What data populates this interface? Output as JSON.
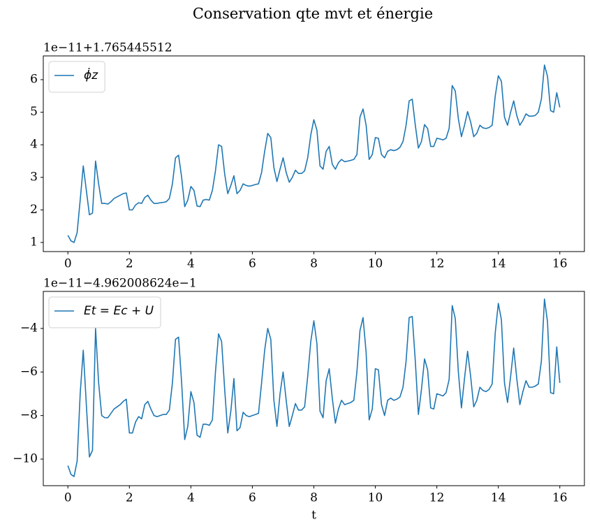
{
  "title": "Conservation qte mvt et énergie",
  "chart_data": [
    {
      "type": "line",
      "offset_text": "1e−11+1.765445512",
      "legend": "upper left",
      "grid": false,
      "x": [
        0,
        0.1,
        0.2,
        0.3,
        0.4,
        0.5,
        0.6,
        0.7,
        0.8,
        0.9,
        1.0,
        1.1,
        1.2,
        1.3,
        1.4,
        1.5,
        1.6,
        1.7,
        1.8,
        1.9,
        2.0,
        2.1,
        2.2,
        2.3,
        2.4,
        2.5,
        2.6,
        2.7,
        2.8,
        2.9,
        3.0,
        3.1,
        3.2,
        3.3,
        3.4,
        3.5,
        3.6,
        3.7,
        3.8,
        3.9,
        4.0,
        4.1,
        4.2,
        4.3,
        4.4,
        4.5,
        4.6,
        4.7,
        4.8,
        4.9,
        5.0,
        5.1,
        5.2,
        5.3,
        5.4,
        5.5,
        5.6,
        5.7,
        5.8,
        5.9,
        6.0,
        6.1,
        6.2,
        6.3,
        6.4,
        6.5,
        6.6,
        6.7,
        6.8,
        6.9,
        7.0,
        7.1,
        7.2,
        7.3,
        7.4,
        7.5,
        7.6,
        7.7,
        7.8,
        7.9,
        8.0,
        8.1,
        8.2,
        8.3,
        8.4,
        8.5,
        8.6,
        8.7,
        8.8,
        8.9,
        9.0,
        9.1,
        9.2,
        9.3,
        9.4,
        9.5,
        9.6,
        9.7,
        9.8,
        9.9,
        10.0,
        10.1,
        10.2,
        10.3,
        10.4,
        10.5,
        10.6,
        10.7,
        10.8,
        10.9,
        11.0,
        11.1,
        11.2,
        11.3,
        11.4,
        11.5,
        11.6,
        11.7,
        11.8,
        11.9,
        12.0,
        12.1,
        12.2,
        12.3,
        12.4,
        12.5,
        12.6,
        12.7,
        12.8,
        12.9,
        13.0,
        13.1,
        13.2,
        13.3,
        13.4,
        13.5,
        13.6,
        13.7,
        13.8,
        13.9,
        14.0,
        14.1,
        14.2,
        14.3,
        14.4,
        14.5,
        14.6,
        14.7,
        14.8,
        14.9,
        15.0,
        15.1,
        15.2,
        15.3,
        15.4,
        15.5,
        15.6,
        15.7,
        15.8,
        15.9,
        16.0
      ],
      "series": [
        {
          "name": "ϕ̇z",
          "color": "#1f77b4",
          "values": [
            1.22,
            1.05,
            1.0,
            1.3,
            2.3,
            3.35,
            2.6,
            1.85,
            1.9,
            3.5,
            2.8,
            2.2,
            2.2,
            2.18,
            2.25,
            2.35,
            2.4,
            2.45,
            2.5,
            2.52,
            2.0,
            2.0,
            2.15,
            2.22,
            2.2,
            2.38,
            2.45,
            2.3,
            2.2,
            2.2,
            2.22,
            2.23,
            2.25,
            2.35,
            2.8,
            3.6,
            3.68,
            3.0,
            2.1,
            2.3,
            2.72,
            2.6,
            2.12,
            2.1,
            2.3,
            2.32,
            2.3,
            2.6,
            3.2,
            4.0,
            3.95,
            3.1,
            2.5,
            2.75,
            3.05,
            2.5,
            2.6,
            2.8,
            2.75,
            2.73,
            2.75,
            2.78,
            2.8,
            3.15,
            3.8,
            4.35,
            4.22,
            3.3,
            2.87,
            3.25,
            3.6,
            3.15,
            2.85,
            3.0,
            3.22,
            3.12,
            3.12,
            3.2,
            3.6,
            4.3,
            4.77,
            4.45,
            3.35,
            3.25,
            3.8,
            3.95,
            3.4,
            3.25,
            3.45,
            3.55,
            3.48,
            3.5,
            3.52,
            3.55,
            3.7,
            4.85,
            5.1,
            4.6,
            3.55,
            3.7,
            4.22,
            4.2,
            3.7,
            3.6,
            3.8,
            3.85,
            3.82,
            3.85,
            3.92,
            4.1,
            4.6,
            5.35,
            5.4,
            4.6,
            3.9,
            4.1,
            4.62,
            4.5,
            3.95,
            3.95,
            4.2,
            4.18,
            4.15,
            4.2,
            4.5,
            5.82,
            5.65,
            4.8,
            4.25,
            4.6,
            5.02,
            4.7,
            4.25,
            4.35,
            4.6,
            4.52,
            4.5,
            4.53,
            4.6,
            5.5,
            6.12,
            5.95,
            4.85,
            4.6,
            5.0,
            5.35,
            4.9,
            4.6,
            4.75,
            4.95,
            4.88,
            4.88,
            4.9,
            5.0,
            5.4,
            6.45,
            6.1,
            5.05,
            5.0,
            5.6,
            5.15
          ]
        }
      ],
      "xlim": [
        -0.8,
        16.8
      ],
      "xticks": [
        0,
        2,
        4,
        6,
        8,
        10,
        12,
        14,
        16
      ],
      "ylim": [
        0.72,
        6.73
      ],
      "yticks": [
        1,
        2,
        3,
        4,
        5,
        6
      ]
    },
    {
      "type": "line",
      "offset_text": "1e−11−4.962008624e−1",
      "legend": "upper left",
      "grid": false,
      "xlabel": "t",
      "x": [
        0,
        0.1,
        0.2,
        0.3,
        0.4,
        0.5,
        0.6,
        0.7,
        0.8,
        0.9,
        1.0,
        1.1,
        1.2,
        1.3,
        1.4,
        1.5,
        1.6,
        1.7,
        1.8,
        1.9,
        2.0,
        2.1,
        2.2,
        2.3,
        2.4,
        2.5,
        2.6,
        2.7,
        2.8,
        2.9,
        3.0,
        3.1,
        3.2,
        3.3,
        3.4,
        3.5,
        3.6,
        3.7,
        3.8,
        3.9,
        4.0,
        4.1,
        4.2,
        4.3,
        4.4,
        4.5,
        4.6,
        4.7,
        4.8,
        4.9,
        5.0,
        5.1,
        5.2,
        5.3,
        5.4,
        5.5,
        5.6,
        5.7,
        5.8,
        5.9,
        6.0,
        6.1,
        6.2,
        6.3,
        6.4,
        6.5,
        6.6,
        6.7,
        6.8,
        6.9,
        7.0,
        7.1,
        7.2,
        7.3,
        7.4,
        7.5,
        7.6,
        7.7,
        7.8,
        7.9,
        8.0,
        8.1,
        8.2,
        8.3,
        8.4,
        8.5,
        8.6,
        8.7,
        8.8,
        8.9,
        9.0,
        9.1,
        9.2,
        9.3,
        9.4,
        9.5,
        9.6,
        9.7,
        9.8,
        9.9,
        10.0,
        10.1,
        10.2,
        10.3,
        10.4,
        10.5,
        10.6,
        10.7,
        10.8,
        10.9,
        11.0,
        11.1,
        11.2,
        11.3,
        11.4,
        11.5,
        11.6,
        11.7,
        11.8,
        11.9,
        12.0,
        12.1,
        12.2,
        12.3,
        12.4,
        12.5,
        12.6,
        12.7,
        12.8,
        12.9,
        13.0,
        13.1,
        13.2,
        13.3,
        13.4,
        13.5,
        13.6,
        13.7,
        13.8,
        13.9,
        14.0,
        14.1,
        14.2,
        14.3,
        14.4,
        14.5,
        14.6,
        14.7,
        14.8,
        14.9,
        15.0,
        15.1,
        15.2,
        15.3,
        15.4,
        15.5,
        15.6,
        15.7,
        15.8,
        15.9,
        16.0
      ],
      "series": [
        {
          "name": "Et = Ec + U",
          "color": "#1f77b4",
          "values": [
            -10.3,
            -10.7,
            -10.8,
            -10.1,
            -7.0,
            -5.0,
            -7.5,
            -9.9,
            -9.6,
            -4.0,
            -6.5,
            -8.0,
            -8.1,
            -8.1,
            -7.9,
            -7.7,
            -7.6,
            -7.5,
            -7.35,
            -7.25,
            -8.8,
            -8.8,
            -8.3,
            -8.05,
            -8.15,
            -7.5,
            -7.35,
            -7.7,
            -8.0,
            -8.05,
            -8.0,
            -7.95,
            -7.95,
            -7.75,
            -6.5,
            -4.5,
            -4.4,
            -6.5,
            -9.1,
            -8.5,
            -6.9,
            -7.4,
            -8.9,
            -9.0,
            -8.4,
            -8.4,
            -8.45,
            -8.2,
            -6.0,
            -4.25,
            -4.6,
            -6.8,
            -8.8,
            -7.8,
            -6.3,
            -8.7,
            -8.55,
            -7.85,
            -8.0,
            -8.05,
            -8.0,
            -7.95,
            -7.9,
            -6.5,
            -5.0,
            -4.0,
            -4.5,
            -7.3,
            -8.5,
            -7.0,
            -6.0,
            -7.3,
            -8.5,
            -8.0,
            -7.45,
            -7.75,
            -7.75,
            -7.6,
            -6.2,
            -4.6,
            -3.65,
            -4.7,
            -7.8,
            -8.1,
            -6.4,
            -5.85,
            -7.2,
            -8.35,
            -7.7,
            -7.3,
            -7.5,
            -7.45,
            -7.4,
            -7.3,
            -6.0,
            -4.1,
            -3.5,
            -5.1,
            -8.2,
            -7.7,
            -5.85,
            -5.9,
            -7.5,
            -8.0,
            -7.3,
            -7.2,
            -7.3,
            -7.25,
            -7.15,
            -6.7,
            -5.5,
            -3.5,
            -3.45,
            -5.5,
            -7.95,
            -6.8,
            -5.4,
            -5.9,
            -7.65,
            -7.7,
            -7.0,
            -7.05,
            -7.1,
            -6.95,
            -6.35,
            -2.95,
            -3.55,
            -6.0,
            -7.65,
            -6.3,
            -5.05,
            -6.2,
            -7.6,
            -7.3,
            -6.7,
            -6.85,
            -6.9,
            -6.8,
            -6.55,
            -4.2,
            -2.85,
            -3.6,
            -6.5,
            -7.4,
            -6.2,
            -4.9,
            -6.3,
            -7.5,
            -6.9,
            -6.4,
            -6.7,
            -6.7,
            -6.65,
            -6.55,
            -5.5,
            -2.65,
            -3.7,
            -6.95,
            -7.0,
            -4.85,
            -6.5
          ]
        }
      ],
      "xlim": [
        -0.8,
        16.8
      ],
      "xticks": [
        0,
        2,
        4,
        6,
        8,
        10,
        12,
        14,
        16
      ],
      "ylim": [
        -11.22,
        -2.3
      ],
      "yticks": [
        {
          "value": -10,
          "label": "−10"
        },
        {
          "value": -8,
          "label": "−8"
        },
        {
          "value": -6,
          "label": "−6"
        },
        {
          "value": -4,
          "label": "−4"
        }
      ]
    }
  ]
}
